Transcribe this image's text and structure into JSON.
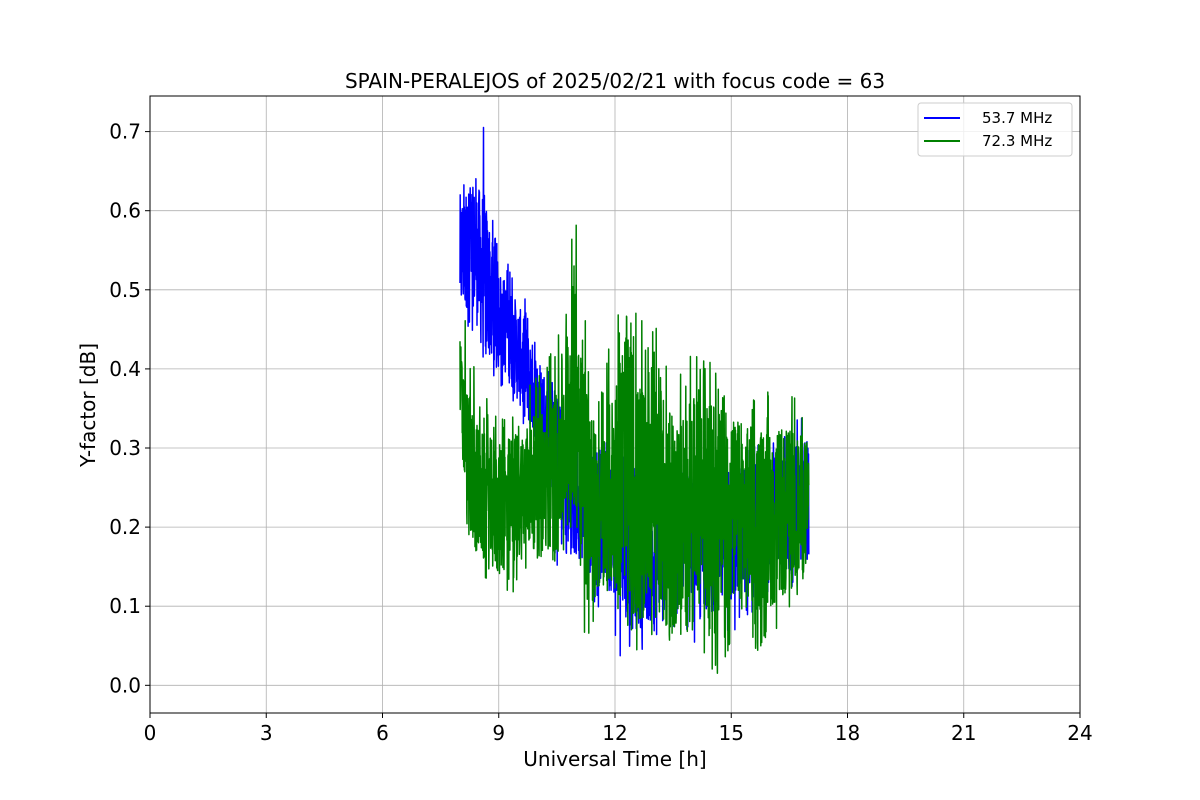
{
  "chart_data": {
    "type": "line",
    "title": "SPAIN-PERALEJOS of 2025/02/21 with focus code = 63",
    "xlabel": "Universal Time [h]",
    "ylabel": "Y-factor [dB]",
    "xlim": [
      0,
      24
    ],
    "ylim": [
      -0.035,
      0.745
    ],
    "xticks": [
      0,
      3,
      6,
      9,
      12,
      15,
      18,
      21,
      24
    ],
    "yticks": [
      0.0,
      0.1,
      0.2,
      0.3,
      0.4,
      0.5,
      0.6,
      0.7
    ],
    "grid": true,
    "legend_position": "top-right",
    "series": [
      {
        "name": "53.7 MHz",
        "color": "#0000ff",
        "envelope": {
          "x": [
            8.0,
            8.3,
            8.6,
            9.0,
            9.5,
            10.0,
            10.5,
            10.8,
            11.0,
            11.5,
            12.0,
            12.5,
            13.0,
            13.5,
            14.0,
            14.5,
            15.0,
            15.5,
            16.0,
            16.5,
            17.0
          ],
          "center": [
            0.54,
            0.56,
            0.52,
            0.47,
            0.42,
            0.36,
            0.3,
            0.24,
            0.22,
            0.22,
            0.2,
            0.17,
            0.16,
            0.2,
            0.19,
            0.16,
            0.19,
            0.2,
            0.22,
            0.22,
            0.24
          ],
          "low": [
            0.42,
            0.44,
            0.4,
            0.38,
            0.34,
            0.28,
            0.15,
            0.15,
            0.16,
            0.1,
            0.05,
            0.0,
            0.06,
            0.07,
            0.05,
            0.07,
            0.02,
            0.08,
            0.12,
            0.12,
            0.13
          ],
          "high": [
            0.65,
            0.64,
            0.71,
            0.55,
            0.52,
            0.44,
            0.38,
            0.35,
            0.34,
            0.34,
            0.3,
            0.3,
            0.27,
            0.28,
            0.26,
            0.28,
            0.28,
            0.3,
            0.31,
            0.33,
            0.36
          ]
        }
      },
      {
        "name": "72.3 MHz",
        "color": "#008000",
        "envelope": {
          "x": [
            8.0,
            8.2,
            8.5,
            9.0,
            9.5,
            10.0,
            10.5,
            10.8,
            11.0,
            11.3,
            11.6,
            12.0,
            12.3,
            12.6,
            13.0,
            13.5,
            14.0,
            14.5,
            15.0,
            15.5,
            16.0,
            16.5,
            17.0
          ],
          "center": [
            0.38,
            0.28,
            0.24,
            0.22,
            0.24,
            0.26,
            0.27,
            0.35,
            0.38,
            0.24,
            0.2,
            0.26,
            0.3,
            0.22,
            0.28,
            0.2,
            0.24,
            0.22,
            0.22,
            0.21,
            0.21,
            0.22,
            0.23
          ],
          "low": [
            0.32,
            0.19,
            0.14,
            0.1,
            0.12,
            0.16,
            0.15,
            0.17,
            0.18,
            0.02,
            0.13,
            0.11,
            0.06,
            0.04,
            0.05,
            0.05,
            0.07,
            0.0,
            0.03,
            0.02,
            0.06,
            0.08,
            0.11
          ],
          "high": [
            0.49,
            0.46,
            0.38,
            0.34,
            0.36,
            0.4,
            0.45,
            0.54,
            0.62,
            0.43,
            0.39,
            0.49,
            0.54,
            0.5,
            0.46,
            0.44,
            0.42,
            0.41,
            0.37,
            0.36,
            0.38,
            0.38,
            0.34
          ]
        }
      }
    ]
  }
}
